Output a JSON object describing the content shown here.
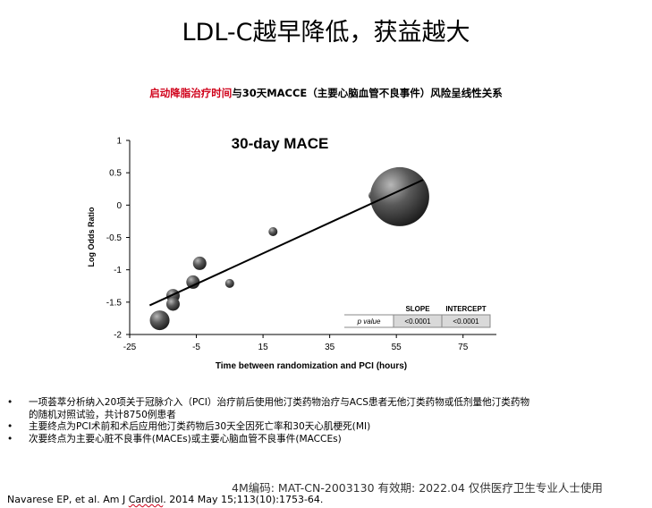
{
  "slide": {
    "title": "LDL-C越早降低，获益越大",
    "subtitle_highlight": "启动降脂治疗时间",
    "subtitle_rest": "与30天MACCE（主要心脑血管不良事件）风险呈线性关系",
    "bullets": [
      {
        "marker": "•",
        "text": "一项荟萃分析纳入20项关于冠脉介入（PCI）治疗前后使用他汀类药物治疗与ACS患者无他汀类药物或低剂量他汀类药物"
      },
      {
        "marker": "",
        "text": "的随机对照试验，共计8750例患者"
      },
      {
        "marker": "•",
        "text": "主要终点为PCI术前和术后应用他汀类药物后30天全因死亡率和30天心肌梗死(MI)"
      },
      {
        "marker": "•",
        "text": "次要终点为主要心脏不良事件(MACEs)或主要心脑血管不良事件(MACCEs)"
      }
    ],
    "footer_code": "4M编码:    MAT-CN-2003130   有效期:  2022.04   仅供医疗卫生专业人士使用",
    "citation_prefix": "Navarese EP, et al. Am J ",
    "citation_journal": "Cardiol",
    "citation_suffix": ". 2014 May 15;113(10):1753-64."
  },
  "chart_data": {
    "type": "scatter",
    "title": "30-day MACE",
    "xlabel": "Time between randomization and PCI (hours)",
    "ylabel": "Log Odds Ratio",
    "xlim": [
      -25,
      85
    ],
    "ylim": [
      -2,
      1
    ],
    "xticks": [
      -25,
      -5,
      15,
      35,
      55,
      75
    ],
    "yticks": [
      1,
      0.5,
      0,
      -0.5,
      -1,
      -1.5,
      -2
    ],
    "points": [
      {
        "x": -16,
        "y": -1.78,
        "weight": "large"
      },
      {
        "x": -12,
        "y": -1.4,
        "weight": "small"
      },
      {
        "x": -12,
        "y": -1.53,
        "weight": "small"
      },
      {
        "x": -6,
        "y": -1.19,
        "weight": "small"
      },
      {
        "x": -4,
        "y": -0.9,
        "weight": "small"
      },
      {
        "x": 5,
        "y": -1.21,
        "weight": "tiny"
      },
      {
        "x": 18,
        "y": -0.41,
        "weight": "tiny"
      },
      {
        "x": 48,
        "y": 0.15,
        "weight": "tiny"
      },
      {
        "x": 56,
        "y": 0.13,
        "weight": "huge"
      }
    ],
    "regression_line": {
      "x": [
        -19,
        63
      ],
      "y": [
        -1.55,
        0.39
      ]
    },
    "table": {
      "headers": [
        "",
        "SLOPE",
        "INTERCEPT"
      ],
      "row_label": "p value",
      "values": [
        "<0.0001",
        "<0.0001"
      ]
    }
  }
}
